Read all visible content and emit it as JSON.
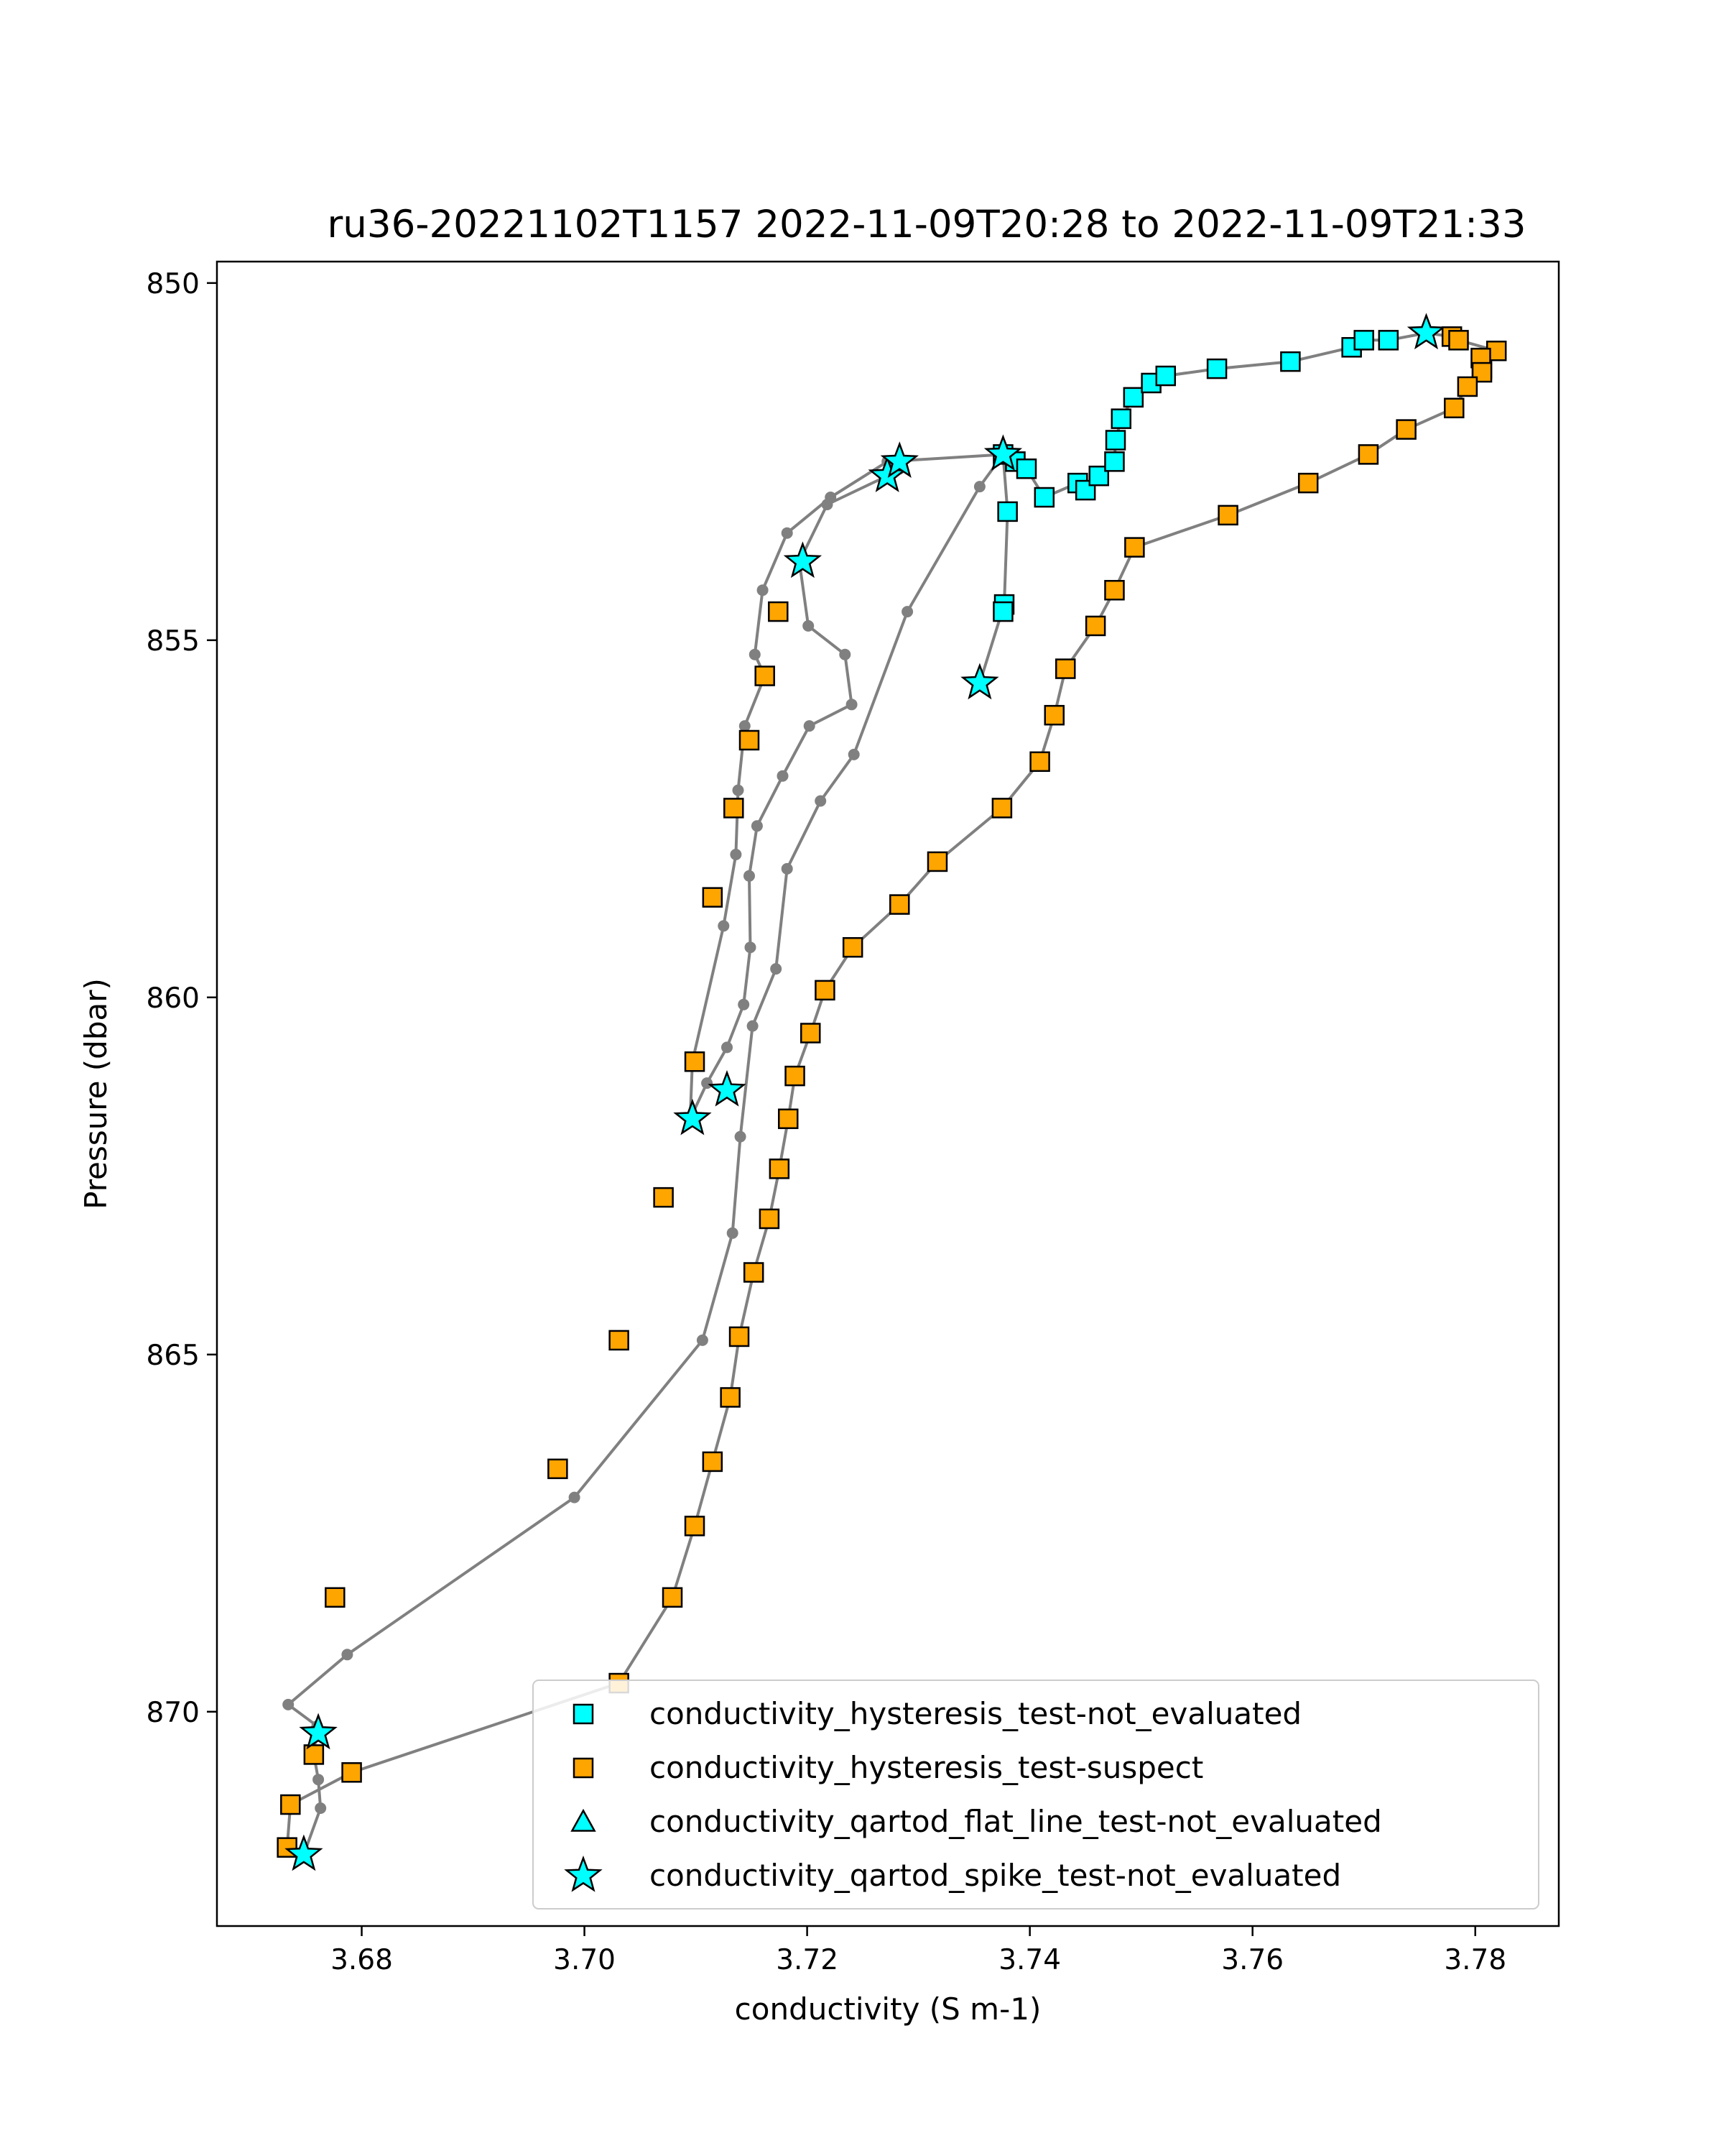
{
  "chart_data": {
    "type": "scatter",
    "title": "ru36-20221102T1157 2022-11-09T20:28 to 2022-11-09T21:33",
    "xlabel": "conductivity (S m-1)",
    "ylabel": "Pressure (dbar)",
    "xlim": [
      3.667,
      3.7875
    ],
    "ylim": [
      873.0,
      849.7
    ],
    "y_inverted": true,
    "xticks": [
      3.68,
      3.7,
      3.72,
      3.74,
      3.76,
      3.78
    ],
    "xtick_labels": [
      "3.68",
      "3.70",
      "3.72",
      "3.74",
      "3.76",
      "3.78"
    ],
    "yticks": [
      850,
      855,
      860,
      865,
      870
    ],
    "ytick_labels": [
      "850",
      "855",
      "860",
      "865",
      "870"
    ],
    "grid": false,
    "legend_position": "lower right",
    "colors": {
      "line": "#808080",
      "not_evaluated": "#00ffff",
      "suspect": "#ffa500",
      "edge": "#000000"
    },
    "profile_line": [
      [
        3.7376,
        852.4
      ],
      [
        3.7387,
        852.5
      ],
      [
        3.7397,
        852.6
      ],
      [
        3.7413,
        853.0
      ],
      [
        3.7443,
        852.8
      ],
      [
        3.745,
        852.9
      ],
      [
        3.7462,
        852.7
      ],
      [
        3.7476,
        852.5
      ],
      [
        3.7477,
        852.2
      ],
      [
        3.7482,
        851.9
      ],
      [
        3.7493,
        851.6
      ],
      [
        3.7509,
        851.4
      ],
      [
        3.7522,
        851.3
      ],
      [
        3.7568,
        851.2
      ],
      [
        3.7634,
        851.1
      ],
      [
        3.7689,
        850.9
      ],
      [
        3.77,
        850.8
      ],
      [
        3.7722,
        850.8
      ],
      [
        3.7756,
        850.7
      ],
      [
        3.7779,
        850.75
      ],
      [
        3.7785,
        850.8
      ],
      [
        3.7819,
        850.95
      ],
      [
        3.7805,
        851.05
      ],
      [
        3.7806,
        851.25
      ],
      [
        3.7793,
        851.45
      ],
      [
        3.7781,
        851.75
      ],
      [
        3.7738,
        852.05
      ],
      [
        3.7704,
        852.4
      ],
      [
        3.765,
        852.8
      ],
      [
        3.7578,
        853.25
      ],
      [
        3.7494,
        853.7
      ],
      [
        3.7476,
        854.3
      ],
      [
        3.7459,
        854.8
      ],
      [
        3.7432,
        855.4
      ],
      [
        3.7422,
        856.05
      ],
      [
        3.7409,
        856.7
      ],
      [
        3.7375,
        857.35
      ],
      [
        3.7317,
        858.1
      ],
      [
        3.7283,
        858.7
      ],
      [
        3.7241,
        859.3
      ],
      [
        3.7216,
        859.9
      ],
      [
        3.7203,
        860.5
      ],
      [
        3.7189,
        861.1
      ],
      [
        3.7183,
        861.7
      ],
      [
        3.7175,
        862.4
      ],
      [
        3.7166,
        863.1
      ],
      [
        3.7152,
        863.85
      ],
      [
        3.7139,
        864.75
      ],
      [
        3.7131,
        865.6
      ],
      [
        3.7115,
        866.5
      ],
      [
        3.7099,
        867.4
      ],
      [
        3.7079,
        868.4
      ],
      [
        3.7031,
        869.6
      ],
      [
        3.6791,
        870.85
      ],
      [
        3.6736,
        871.3
      ],
      [
        3.6733,
        871.9
      ],
      [
        3.6748,
        872.0
      ],
      [
        3.6763,
        871.35
      ],
      [
        3.6761,
        870.95
      ],
      [
        3.6757,
        870.6
      ],
      [
        3.676,
        870.2
      ],
      [
        3.6734,
        869.9
      ],
      [
        3.6787,
        869.2
      ],
      [
        3.6991,
        867.0
      ],
      [
        3.7106,
        864.8
      ],
      [
        3.7133,
        863.3
      ],
      [
        3.714,
        861.95
      ],
      [
        3.7151,
        860.4
      ],
      [
        3.7172,
        859.6
      ],
      [
        3.7182,
        858.2
      ],
      [
        3.7212,
        857.25
      ],
      [
        3.7242,
        856.6
      ],
      [
        3.729,
        854.6
      ],
      [
        3.7355,
        852.85
      ],
      [
        3.7376,
        852.4
      ]
    ],
    "profile_line_2": [
      [
        3.7355,
        855.6
      ],
      [
        3.7377,
        854.5
      ],
      [
        3.738,
        853.2
      ],
      [
        3.7376,
        852.4
      ],
      [
        3.7272,
        852.5
      ],
      [
        3.7221,
        853.0
      ],
      [
        3.7182,
        853.5
      ],
      [
        3.716,
        854.3
      ],
      [
        3.7153,
        855.2
      ],
      [
        3.7162,
        855.5
      ],
      [
        3.7144,
        856.2
      ],
      [
        3.7138,
        857.1
      ],
      [
        3.7136,
        858.0
      ],
      [
        3.7125,
        859.0
      ],
      [
        3.7097,
        860.9
      ],
      [
        3.7095,
        861.7
      ],
      [
        3.711,
        861.2
      ],
      [
        3.7128,
        860.7
      ],
      [
        3.7143,
        860.1
      ],
      [
        3.7149,
        859.3
      ],
      [
        3.7148,
        858.3
      ],
      [
        3.7155,
        857.6
      ],
      [
        3.7178,
        856.9
      ],
      [
        3.7202,
        856.2
      ],
      [
        3.724,
        855.9
      ],
      [
        3.7234,
        855.2
      ],
      [
        3.7201,
        854.8
      ],
      [
        3.7193,
        853.9
      ],
      [
        3.7218,
        853.1
      ],
      [
        3.7272,
        852.7
      ],
      [
        3.7283,
        852.6
      ]
    ],
    "series": [
      {
        "name": "conductivity_hysteresis_test-not_evaluated",
        "marker": "square",
        "color": "#00ffff",
        "points": [
          [
            3.7376,
            852.4
          ],
          [
            3.7387,
            852.5
          ],
          [
            3.7397,
            852.6
          ],
          [
            3.7413,
            853.0
          ],
          [
            3.7443,
            852.8
          ],
          [
            3.745,
            852.9
          ],
          [
            3.7462,
            852.7
          ],
          [
            3.7476,
            852.5
          ],
          [
            3.7477,
            852.2
          ],
          [
            3.7482,
            851.9
          ],
          [
            3.7493,
            851.6
          ],
          [
            3.7509,
            851.4
          ],
          [
            3.7522,
            851.3
          ],
          [
            3.7568,
            851.2
          ],
          [
            3.7634,
            851.1
          ],
          [
            3.7689,
            850.9
          ],
          [
            3.77,
            850.8
          ],
          [
            3.7722,
            850.8
          ],
          [
            3.738,
            853.2
          ],
          [
            3.7377,
            854.5
          ],
          [
            3.7376,
            854.6
          ],
          [
            3.7806,
            851.2
          ]
        ]
      },
      {
        "name": "conductivity_hysteresis_test-suspect",
        "marker": "square",
        "color": "#ffa500",
        "points": [
          [
            3.7779,
            850.75
          ],
          [
            3.7785,
            850.8
          ],
          [
            3.7819,
            850.95
          ],
          [
            3.7805,
            851.05
          ],
          [
            3.7806,
            851.25
          ],
          [
            3.7793,
            851.45
          ],
          [
            3.7781,
            851.75
          ],
          [
            3.7738,
            852.05
          ],
          [
            3.7704,
            852.4
          ],
          [
            3.765,
            852.8
          ],
          [
            3.7578,
            853.25
          ],
          [
            3.7494,
            853.7
          ],
          [
            3.7476,
            854.3
          ],
          [
            3.7459,
            854.8
          ],
          [
            3.7432,
            855.4
          ],
          [
            3.7422,
            856.05
          ],
          [
            3.7409,
            856.7
          ],
          [
            3.7375,
            857.35
          ],
          [
            3.7317,
            858.1
          ],
          [
            3.7283,
            858.7
          ],
          [
            3.7241,
            859.3
          ],
          [
            3.7216,
            859.9
          ],
          [
            3.7203,
            860.5
          ],
          [
            3.7189,
            861.1
          ],
          [
            3.7183,
            861.7
          ],
          [
            3.7175,
            862.4
          ],
          [
            3.7166,
            863.1
          ],
          [
            3.7152,
            863.85
          ],
          [
            3.7139,
            864.75
          ],
          [
            3.7131,
            865.6
          ],
          [
            3.7115,
            866.5
          ],
          [
            3.7099,
            867.4
          ],
          [
            3.7079,
            868.4
          ],
          [
            3.7031,
            869.6
          ],
          [
            3.6791,
            870.85
          ],
          [
            3.6736,
            871.3
          ],
          [
            3.6733,
            871.9
          ],
          [
            3.6757,
            870.6
          ],
          [
            3.6776,
            868.4
          ],
          [
            3.6976,
            866.6
          ],
          [
            3.7031,
            864.8
          ],
          [
            3.7071,
            862.8
          ],
          [
            3.7099,
            860.9
          ],
          [
            3.7115,
            858.6
          ],
          [
            3.7134,
            857.35
          ],
          [
            3.7148,
            856.4
          ],
          [
            3.7162,
            855.5
          ],
          [
            3.7174,
            854.6
          ]
        ]
      },
      {
        "name": "conductivity_qartod_flat_line_test-not_evaluated",
        "marker": "triangle",
        "color": "#00ffff",
        "points": []
      },
      {
        "name": "conductivity_qartod_spike_test-not_evaluated",
        "marker": "star",
        "color": "#00ffff",
        "points": [
          [
            3.7756,
            850.7
          ],
          [
            3.7272,
            852.7
          ],
          [
            3.7283,
            852.5
          ],
          [
            3.7376,
            852.4
          ],
          [
            3.7196,
            853.9
          ],
          [
            3.7355,
            855.6
          ],
          [
            3.7097,
            861.7
          ],
          [
            3.7128,
            861.3
          ],
          [
            3.6761,
            870.3
          ],
          [
            3.6748,
            872.0
          ]
        ]
      }
    ]
  }
}
